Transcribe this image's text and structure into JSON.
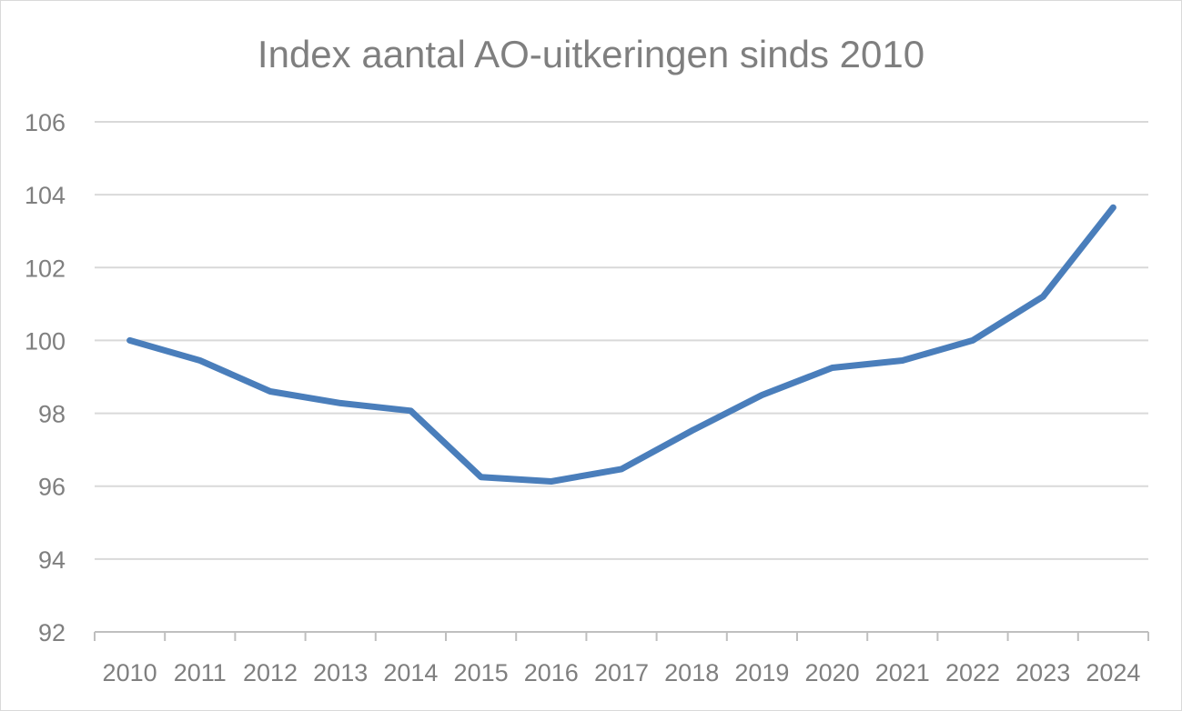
{
  "chart_data": {
    "type": "line",
    "title": "Index aantal AO-uitkeringen sinds 2010",
    "xlabel": "",
    "ylabel": "",
    "categories": [
      "2010",
      "2011",
      "2012",
      "2013",
      "2014",
      "2015",
      "2016",
      "2017",
      "2018",
      "2019",
      "2020",
      "2021",
      "2022",
      "2023",
      "2024"
    ],
    "series": [
      {
        "values": [
          100.0,
          99.45,
          98.6,
          98.28,
          98.07,
          96.25,
          96.13,
          96.47,
          97.52,
          98.5,
          99.25,
          99.45,
          100.0,
          101.2,
          103.65
        ]
      }
    ],
    "ylim": [
      92,
      106
    ],
    "yticks": [
      "92",
      "94",
      "96",
      "98",
      "100",
      "102",
      "104",
      "106"
    ],
    "grid": true,
    "legend": "none",
    "colors": {
      "line": "#4a7ebb",
      "grid": "#d9d9d9",
      "axis": "#bfbfbf",
      "text": "#7f7f7f"
    }
  }
}
